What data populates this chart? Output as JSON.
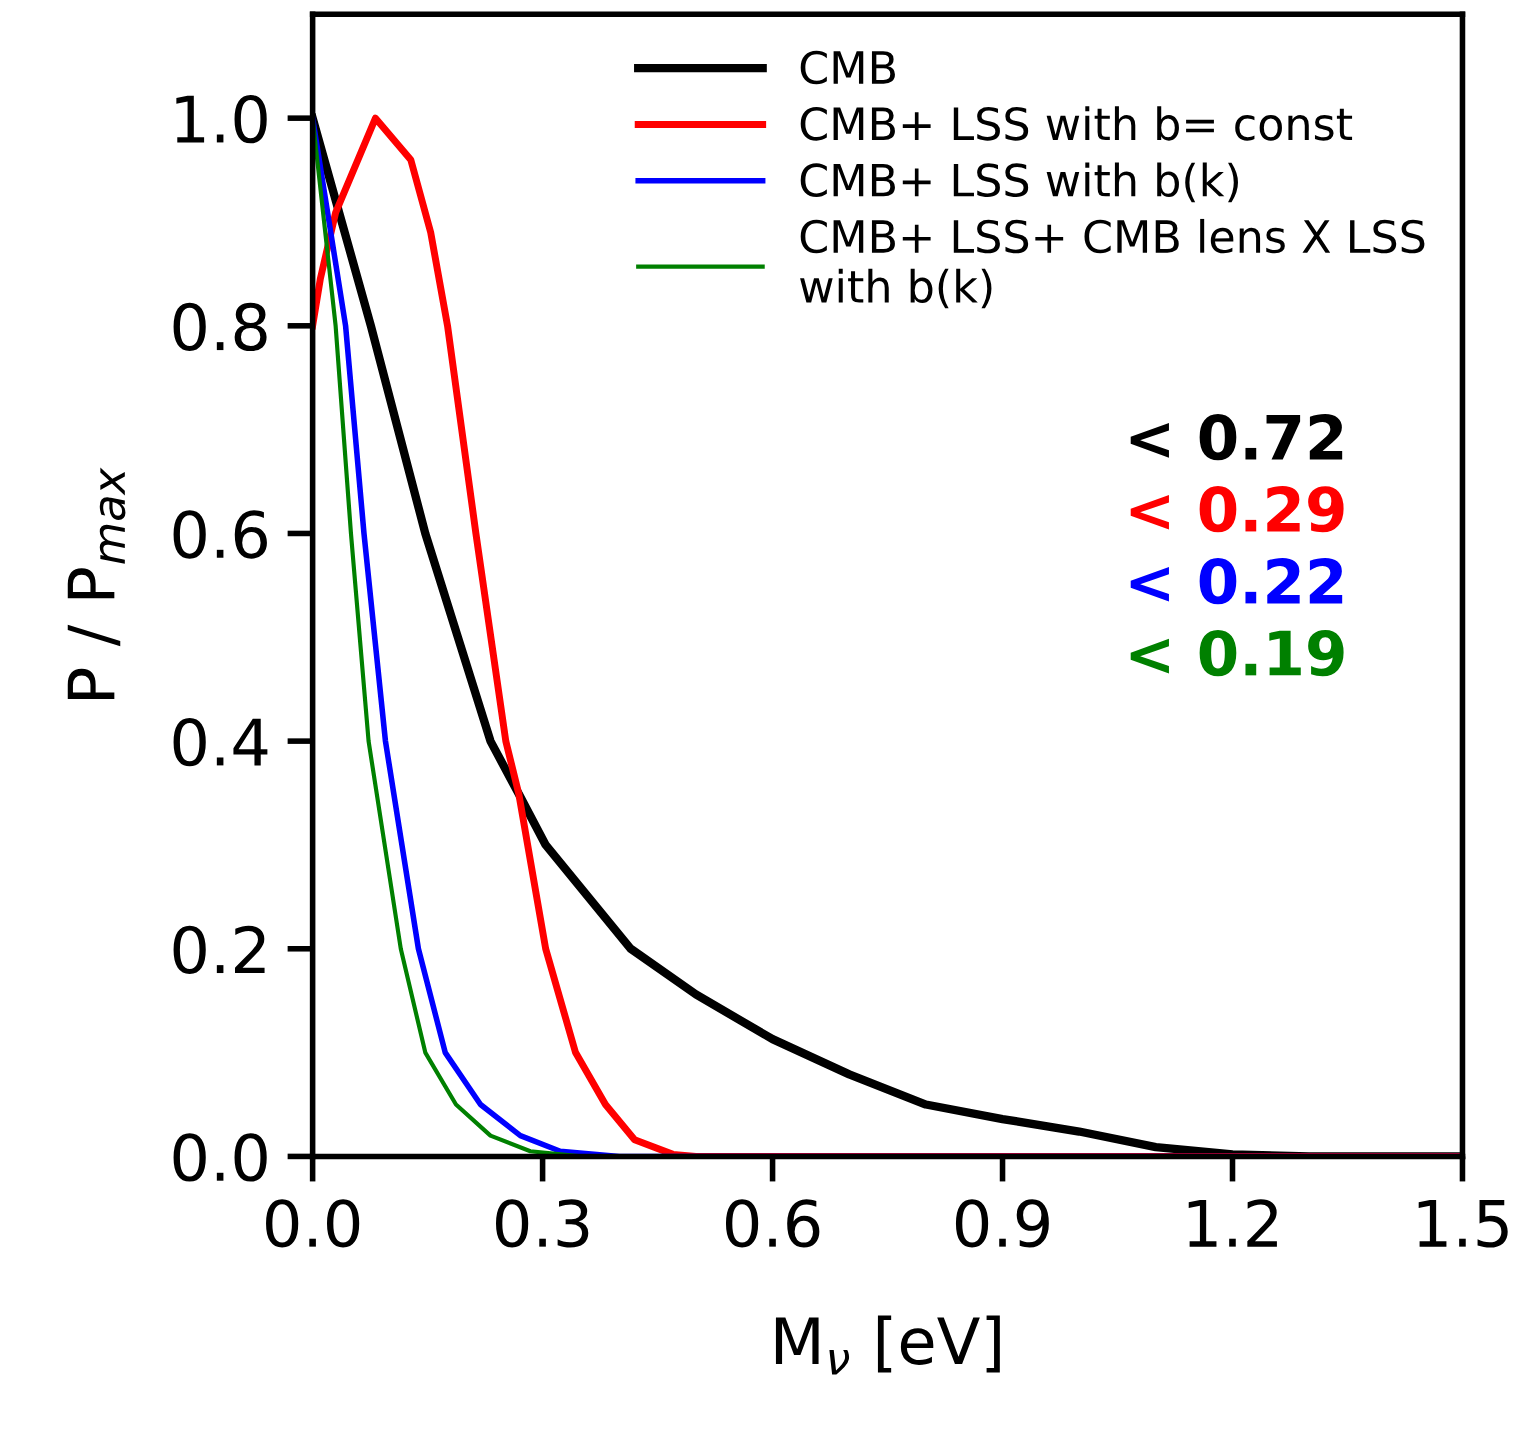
{
  "chart_data": {
    "type": "line",
    "xlabel": "M$_{ν}$ [eV]",
    "ylabel": "P / P$_{max}$",
    "xlim": [
      0,
      1.5
    ],
    "ylim": [
      0,
      1.1
    ],
    "xticks": [
      {
        "value": 0,
        "label": "0.0"
      },
      0.3,
      0.6,
      0.9,
      1.2,
      1.5
    ],
    "yticks": [
      {
        "value": 0,
        "label": "0.0"
      },
      0.2,
      0.4,
      0.6,
      0.8,
      {
        "value": 1,
        "label": "1.0"
      }
    ],
    "legend": "top right",
    "grid": false,
    "series": [
      {
        "name": "CMB",
        "color": "#000000",
        "x": [
          0,
          0.076,
          0.147,
          0.232,
          0.269,
          0.304,
          0.415,
          0.5,
          0.6,
          0.7,
          0.8,
          0.9,
          1.0,
          1.1,
          1.2,
          1.3,
          1.5
        ],
        "values": [
          1.0,
          0.8,
          0.6,
          0.4,
          0.349,
          0.3,
          0.2,
          0.156,
          0.113,
          0.079,
          0.05,
          0.036,
          0.024,
          0.009,
          0.002,
          0,
          0
        ]
      },
      {
        "name": "CMB+ LSS with b= const",
        "color": "#ff0000",
        "x": [
          0,
          0.01,
          0.03,
          0.082,
          0.128,
          0.154,
          0.176,
          0.213,
          0.252,
          0.269,
          0.304,
          0.343,
          0.382,
          0.42,
          0.47,
          0.5,
          1.5
        ],
        "values": [
          0.8,
          0.845,
          0.909,
          1.0,
          0.96,
          0.89,
          0.8,
          0.6,
          0.4,
          0.349,
          0.2,
          0.1,
          0.05,
          0.016,
          0.002,
          0,
          0
        ]
      },
      {
        "name": "CMB+ LSS with b(k)",
        "color": "#0000ff",
        "x": [
          0,
          0.043,
          0.067,
          0.095,
          0.138,
          0.173,
          0.219,
          0.271,
          0.323,
          0.4,
          1.5
        ],
        "values": [
          1.0,
          0.8,
          0.6,
          0.4,
          0.2,
          0.1,
          0.05,
          0.02,
          0.005,
          0,
          0
        ]
      },
      {
        "name": "CMB+ LSS+ CMB lens X LSS\nwith b(k)",
        "color": "#008000",
        "x": [
          0,
          0.03,
          0.05,
          0.073,
          0.115,
          0.147,
          0.187,
          0.232,
          0.284,
          0.35,
          1.5
        ],
        "values": [
          1.0,
          0.8,
          0.6,
          0.4,
          0.2,
          0.1,
          0.05,
          0.02,
          0.005,
          0,
          0
        ]
      }
    ],
    "annotations": [
      "< 0.72",
      "< 0.29",
      "< 0.22",
      "< 0.19"
    ]
  }
}
